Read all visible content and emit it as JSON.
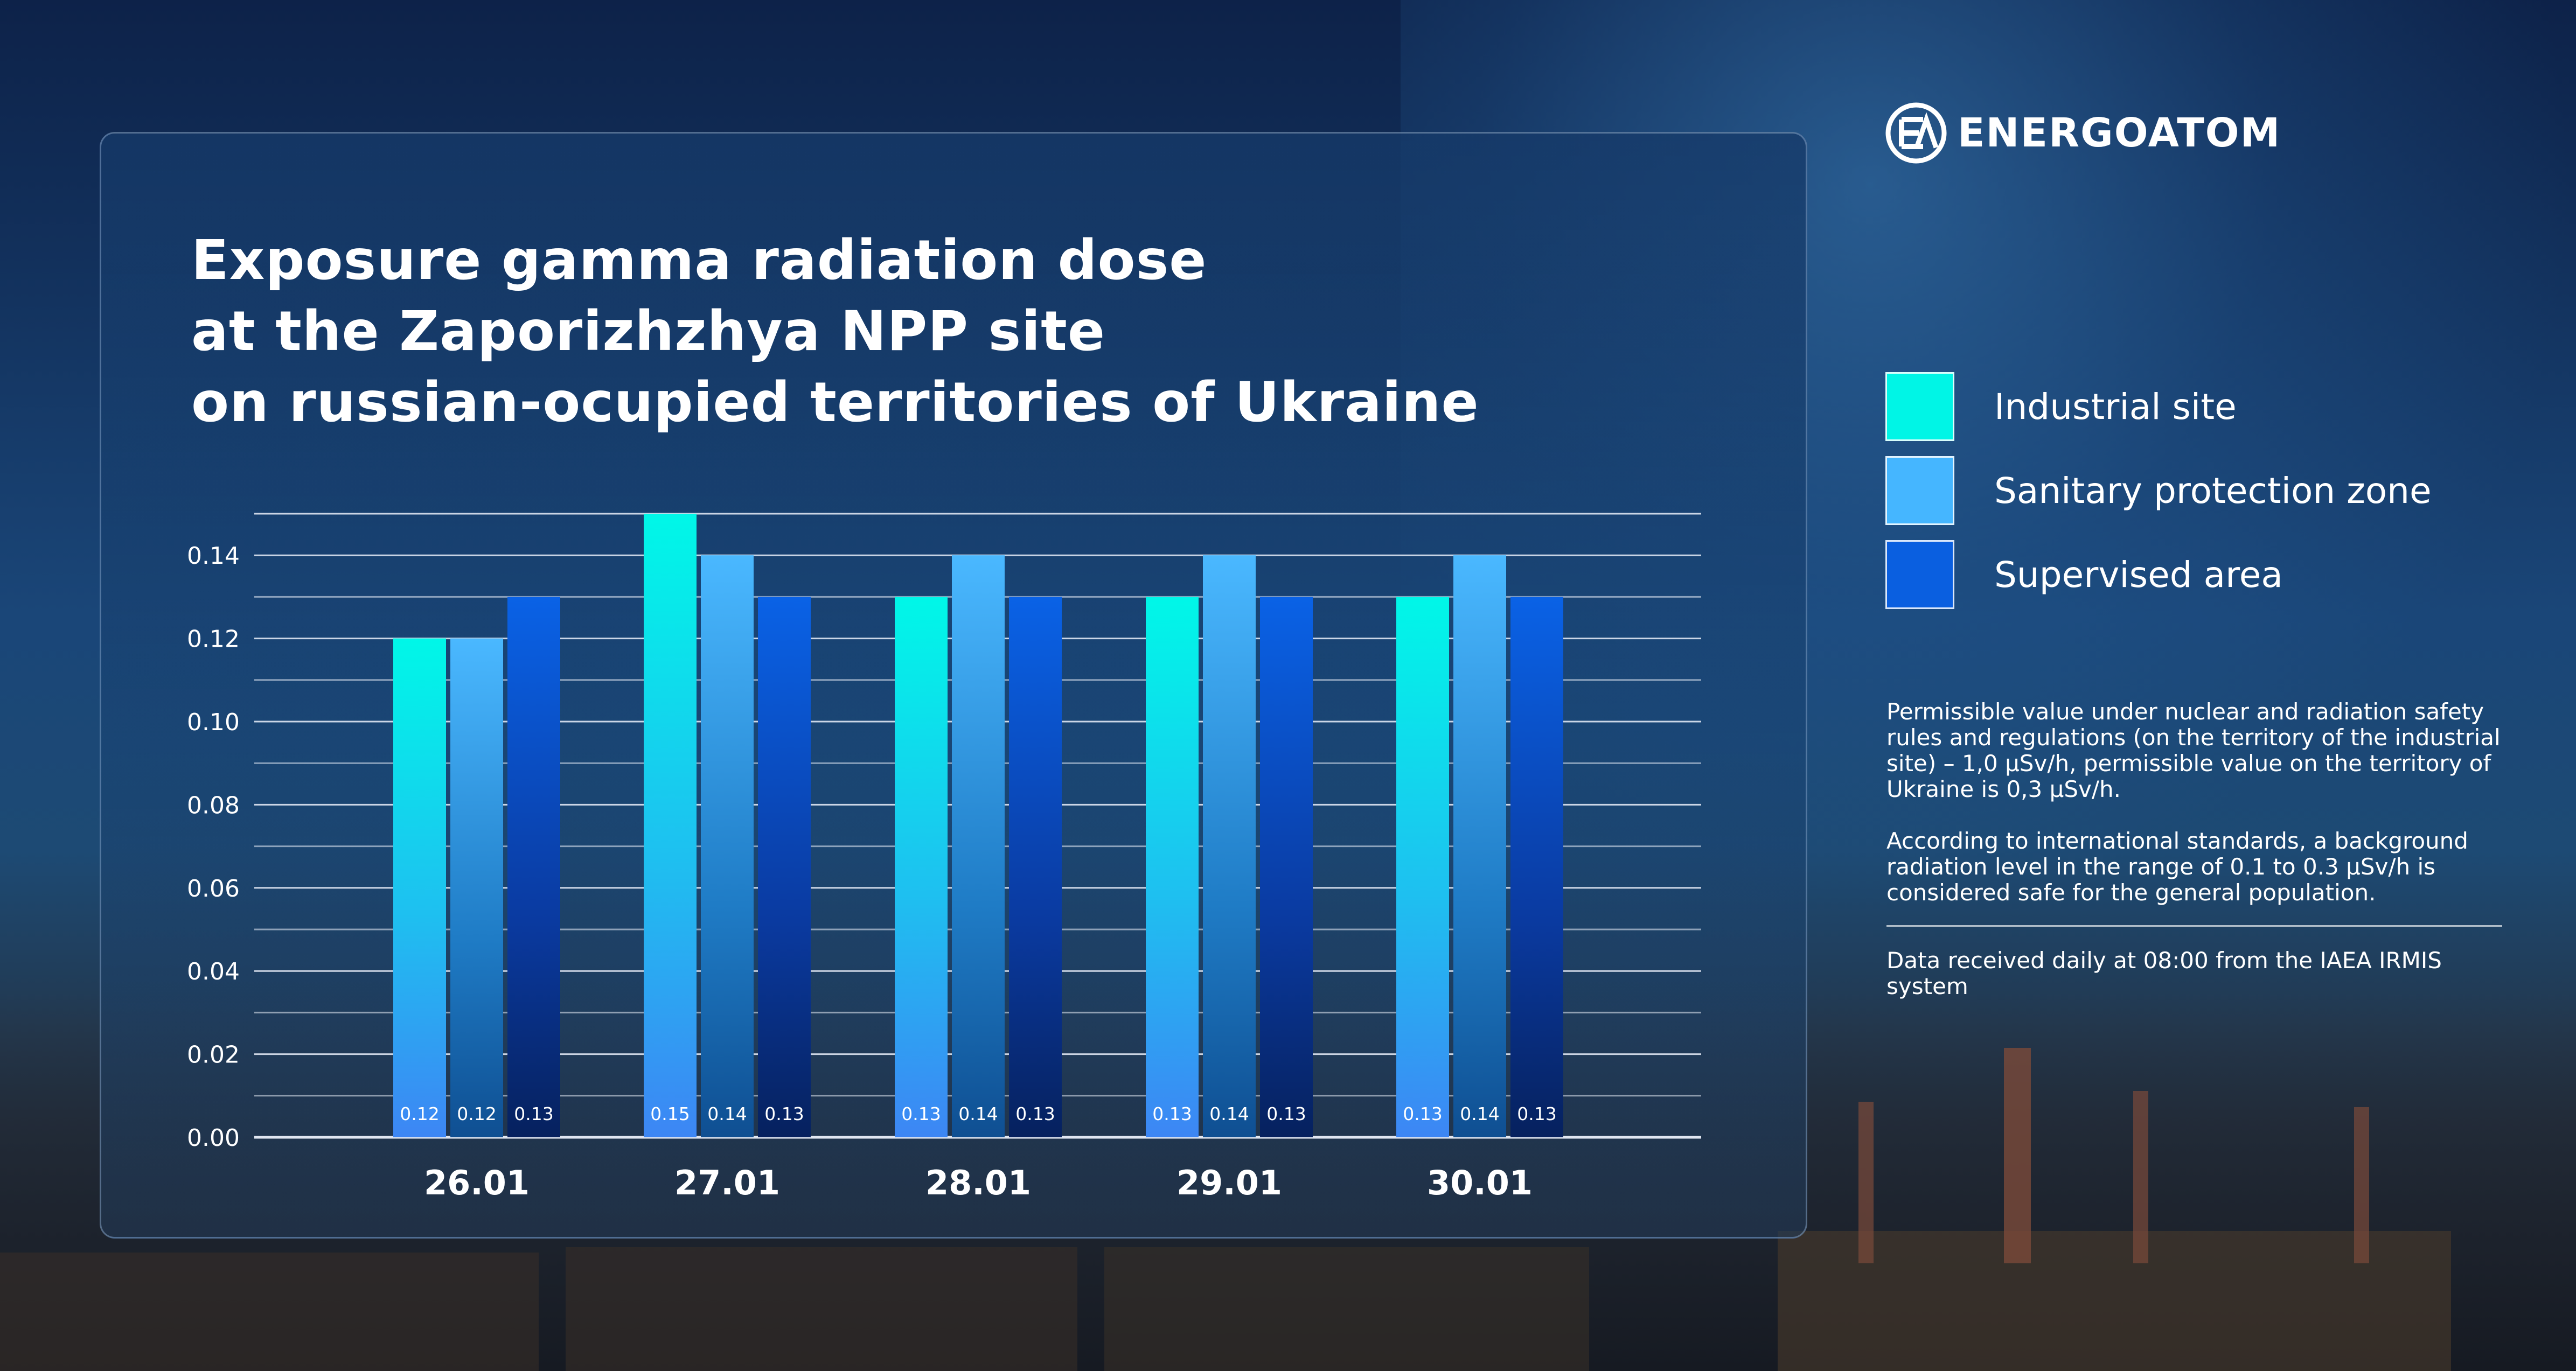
{
  "brand": {
    "name": "ENERGOATOM"
  },
  "title_lines": [
    "Exposure gamma radiation dose",
    "at the Zaporizhzhya NPP site",
    "on russian-ocupied territories of Ukraine"
  ],
  "notes": {
    "paragraph1": "Permissible value under nuclear and radiation safety rules and regulations (on the territory of the industrial site) – 1,0 μSv/h, permissible value on the territory of Ukraine is 0,3 μSv/h.",
    "paragraph2": "According to international standards, a background radiation level in the range of 0.1 to 0.3 μSv/h is considered safe for the general population.",
    "source": "Data received daily at 08:00 from the IAEA IRMIS system"
  },
  "colors": {
    "industrial": "#00f5e6",
    "sanitary": "#45b6ff",
    "supervised": "#0a5fe0"
  },
  "chart_data": {
    "type": "bar",
    "categories": [
      "26.01",
      "27.01",
      "28.01",
      "29.01",
      "30.01"
    ],
    "series": [
      {
        "name": "Industrial site",
        "values": [
          0.12,
          0.15,
          0.13,
          0.13,
          0.13
        ]
      },
      {
        "name": "Sanitary protection zone",
        "values": [
          0.12,
          0.14,
          0.14,
          0.14,
          0.14
        ]
      },
      {
        "name": "Supervised area",
        "values": [
          0.13,
          0.13,
          0.13,
          0.13,
          0.13
        ]
      }
    ],
    "y_ticks": [
      "0.00",
      "0.02",
      "0.04",
      "0.06",
      "0.08",
      "0.10",
      "0.12",
      "0.14"
    ],
    "ylim": [
      0,
      0.15
    ],
    "grid": true,
    "legend_position": "right"
  }
}
